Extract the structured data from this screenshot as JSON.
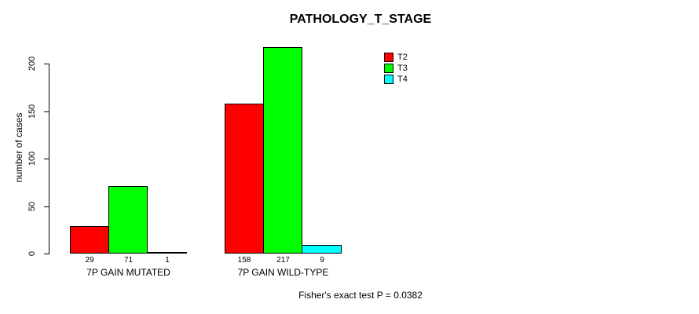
{
  "chart_data": {
    "type": "bar",
    "title": "PATHOLOGY_T_STAGE",
    "ylabel": "number of cases",
    "xlabel": "",
    "categories": [
      "7P GAIN MUTATED",
      "7P GAIN WILD-TYPE"
    ],
    "series": [
      {
        "name": "T2",
        "color": "#ff0000",
        "values": [
          29,
          158
        ]
      },
      {
        "name": "T3",
        "color": "#00ff00",
        "values": [
          71,
          217
        ]
      },
      {
        "name": "T4",
        "color": "#00ffff",
        "values": [
          1,
          9
        ]
      }
    ],
    "bar_value_labels": [
      [
        "29",
        "71",
        "1"
      ],
      [
        "158",
        "217",
        "9"
      ]
    ],
    "yticks": [
      0,
      50,
      100,
      150,
      200
    ],
    "ylim": [
      0,
      217
    ],
    "grid": false,
    "legend_position": "top-right",
    "annotation": "Fisher's exact test P = 0.0382",
    "axis_color": "#000000",
    "background_color": "#ffffff"
  }
}
